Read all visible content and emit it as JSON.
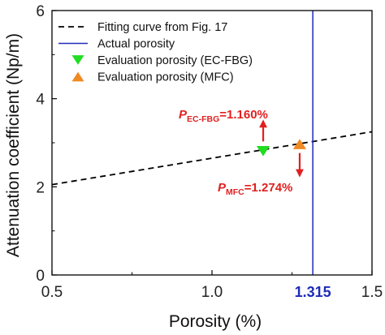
{
  "chart_data": {
    "type": "line",
    "xlabel": "Porosity (%)",
    "ylabel": "Attenuation coefficient (Np/m)",
    "xlim": [
      0.5,
      1.5
    ],
    "ylim": [
      0,
      6
    ],
    "x_ticks": [
      {
        "value": 0.5,
        "label": "0.5"
      },
      {
        "value": 1.0,
        "label": "1.0"
      },
      {
        "value": 1.5,
        "label": "1.5"
      }
    ],
    "y_ticks": [
      {
        "value": 0,
        "label": "0"
      },
      {
        "value": 2,
        "label": "2"
      },
      {
        "value": 4,
        "label": "4"
      },
      {
        "value": 6,
        "label": "6"
      }
    ],
    "special_x_tick": {
      "value": 1.315,
      "label": "1.315",
      "color": "#1f2bb8"
    },
    "legend_position": "top-left",
    "series": [
      {
        "name": "Fitting curve from Fig. 17",
        "kind": "line",
        "style": "dashed",
        "color": "#000000",
        "x": [
          0.5,
          1.5
        ],
        "y": [
          2.05,
          3.25
        ]
      },
      {
        "name": "Actual porosity",
        "kind": "vline",
        "color": "#1f2bb8",
        "x": 1.315
      },
      {
        "name": "Evaluation porosity (EC-FBG)",
        "kind": "marker",
        "marker": "triangle-down",
        "color": "#22dd22",
        "x": 1.16,
        "y": 2.81
      },
      {
        "name": "Evaluation porosity (MFC)",
        "kind": "marker",
        "marker": "triangle-up",
        "color": "#f08a24",
        "x": 1.274,
        "y": 2.97
      }
    ],
    "annotations": [
      {
        "target": "EC-FBG",
        "main": "P",
        "sub": "EC-FBG",
        "value": "=1.160%",
        "arrow_direction": "up",
        "color": "#e02020"
      },
      {
        "target": "MFC",
        "main": "P",
        "sub": "MFC",
        "value": "=1.274%",
        "arrow_direction": "down",
        "color": "#e02020"
      }
    ]
  }
}
